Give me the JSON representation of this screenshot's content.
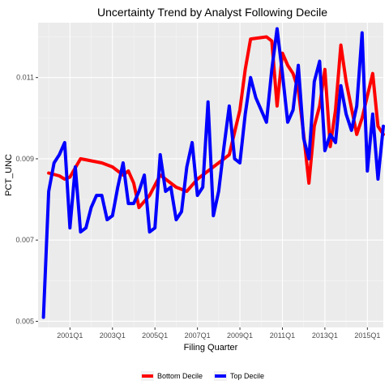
{
  "chart_data": {
    "type": "line",
    "title": "Uncertainty Trend by Analyst Following Decile",
    "xlabel": "Filing Quarter",
    "ylabel": "PCT_UNC",
    "xlim": [
      1999.5,
      2015.75
    ],
    "ylim": [
      0.00485,
      0.01235
    ],
    "x_ticks": [
      {
        "label": "2001Q1",
        "value": 2001.0
      },
      {
        "label": "2003Q1",
        "value": 2003.0
      },
      {
        "label": "2005Q1",
        "value": 2005.0
      },
      {
        "label": "2007Q1",
        "value": 2007.0
      },
      {
        "label": "2009Q1",
        "value": 2009.0
      },
      {
        "label": "2011Q1",
        "value": 2011.0
      },
      {
        "label": "2013Q1",
        "value": 2013.0
      },
      {
        "label": "2015Q1",
        "value": 2015.0
      }
    ],
    "y_ticks": [
      {
        "label": "0.005",
        "value": 0.005
      },
      {
        "label": "0.007",
        "value": 0.007
      },
      {
        "label": "0.009",
        "value": 0.009
      },
      {
        "label": "0.011",
        "value": 0.011
      }
    ],
    "legend": "bottom",
    "grid": true,
    "series": [
      {
        "name": "Bottom Decile",
        "color": "#ff0000",
        "points": [
          [
            2000.0,
            0.00865
          ],
          [
            2000.5,
            0.00858
          ],
          [
            2000.75,
            0.0085
          ],
          [
            2001.0,
            0.00855
          ],
          [
            2001.5,
            0.009
          ],
          [
            2002.5,
            0.0089
          ],
          [
            2003.0,
            0.0088
          ],
          [
            2003.5,
            0.0086
          ],
          [
            2003.75,
            0.0087
          ],
          [
            2004.0,
            0.0084
          ],
          [
            2004.25,
            0.0078
          ],
          [
            2004.75,
            0.0081
          ],
          [
            2005.25,
            0.0086
          ],
          [
            2006.0,
            0.0083
          ],
          [
            2006.5,
            0.0082
          ],
          [
            2007.0,
            0.0085
          ],
          [
            2007.5,
            0.0087
          ],
          [
            2008.0,
            0.0089
          ],
          [
            2008.5,
            0.0091
          ],
          [
            2009.0,
            0.0102
          ],
          [
            2009.25,
            0.0112
          ],
          [
            2009.5,
            0.01195
          ],
          [
            2010.25,
            0.012
          ],
          [
            2010.5,
            0.0119
          ],
          [
            2010.75,
            0.0103
          ],
          [
            2011.0,
            0.0116
          ],
          [
            2011.25,
            0.0113
          ],
          [
            2011.5,
            0.0111
          ],
          [
            2011.75,
            0.0107
          ],
          [
            2012.0,
            0.0096
          ],
          [
            2012.25,
            0.0084
          ],
          [
            2012.5,
            0.0098
          ],
          [
            2012.75,
            0.0103
          ],
          [
            2013.0,
            0.0112
          ],
          [
            2013.25,
            0.0093
          ],
          [
            2013.5,
            0.0102
          ],
          [
            2013.75,
            0.0118
          ],
          [
            2014.0,
            0.0109
          ],
          [
            2014.5,
            0.0096
          ],
          [
            2014.75,
            0.01
          ],
          [
            2015.25,
            0.0111
          ],
          [
            2015.5,
            0.0098
          ],
          [
            2015.75,
            0.0096
          ]
        ]
      },
      {
        "name": "Top Decile",
        "color": "#0000ff",
        "points": [
          [
            1999.75,
            0.0051
          ],
          [
            2000.0,
            0.0082
          ],
          [
            2000.25,
            0.0089
          ],
          [
            2000.5,
            0.0091
          ],
          [
            2000.75,
            0.0094
          ],
          [
            2001.0,
            0.0073
          ],
          [
            2001.25,
            0.0088
          ],
          [
            2001.5,
            0.0072
          ],
          [
            2001.75,
            0.0073
          ],
          [
            2002.0,
            0.0078
          ],
          [
            2002.25,
            0.0081
          ],
          [
            2002.5,
            0.0081
          ],
          [
            2002.75,
            0.0075
          ],
          [
            2003.0,
            0.0076
          ],
          [
            2003.25,
            0.0083
          ],
          [
            2003.5,
            0.0089
          ],
          [
            2003.75,
            0.0079
          ],
          [
            2004.0,
            0.0079
          ],
          [
            2004.25,
            0.0082
          ],
          [
            2004.5,
            0.0086
          ],
          [
            2004.75,
            0.0072
          ],
          [
            2005.0,
            0.0073
          ],
          [
            2005.25,
            0.0091
          ],
          [
            2005.5,
            0.0082
          ],
          [
            2005.75,
            0.0083
          ],
          [
            2006.0,
            0.0075
          ],
          [
            2006.25,
            0.0077
          ],
          [
            2006.5,
            0.0088
          ],
          [
            2006.75,
            0.0094
          ],
          [
            2007.0,
            0.0081
          ],
          [
            2007.25,
            0.0083
          ],
          [
            2007.5,
            0.0104
          ],
          [
            2007.75,
            0.0076
          ],
          [
            2008.0,
            0.0082
          ],
          [
            2008.25,
            0.0093
          ],
          [
            2008.5,
            0.0103
          ],
          [
            2008.75,
            0.009
          ],
          [
            2009.0,
            0.0089
          ],
          [
            2009.25,
            0.0101
          ],
          [
            2009.5,
            0.011
          ],
          [
            2009.75,
            0.0105
          ],
          [
            2010.0,
            0.0102
          ],
          [
            2010.25,
            0.0099
          ],
          [
            2010.5,
            0.0112
          ],
          [
            2010.75,
            0.0122
          ],
          [
            2011.0,
            0.0111
          ],
          [
            2011.25,
            0.0099
          ],
          [
            2011.5,
            0.0102
          ],
          [
            2011.75,
            0.0113
          ],
          [
            2012.0,
            0.0095
          ],
          [
            2012.25,
            0.009
          ],
          [
            2012.5,
            0.0109
          ],
          [
            2012.75,
            0.0114
          ],
          [
            2013.0,
            0.0092
          ],
          [
            2013.25,
            0.0096
          ],
          [
            2013.5,
            0.0094
          ],
          [
            2013.75,
            0.0108
          ],
          [
            2014.0,
            0.0101
          ],
          [
            2014.25,
            0.0097
          ],
          [
            2014.5,
            0.0103
          ],
          [
            2014.75,
            0.0121
          ],
          [
            2015.0,
            0.0087
          ],
          [
            2015.25,
            0.0101
          ],
          [
            2015.5,
            0.0085
          ],
          [
            2015.75,
            0.0098
          ]
        ]
      }
    ]
  }
}
